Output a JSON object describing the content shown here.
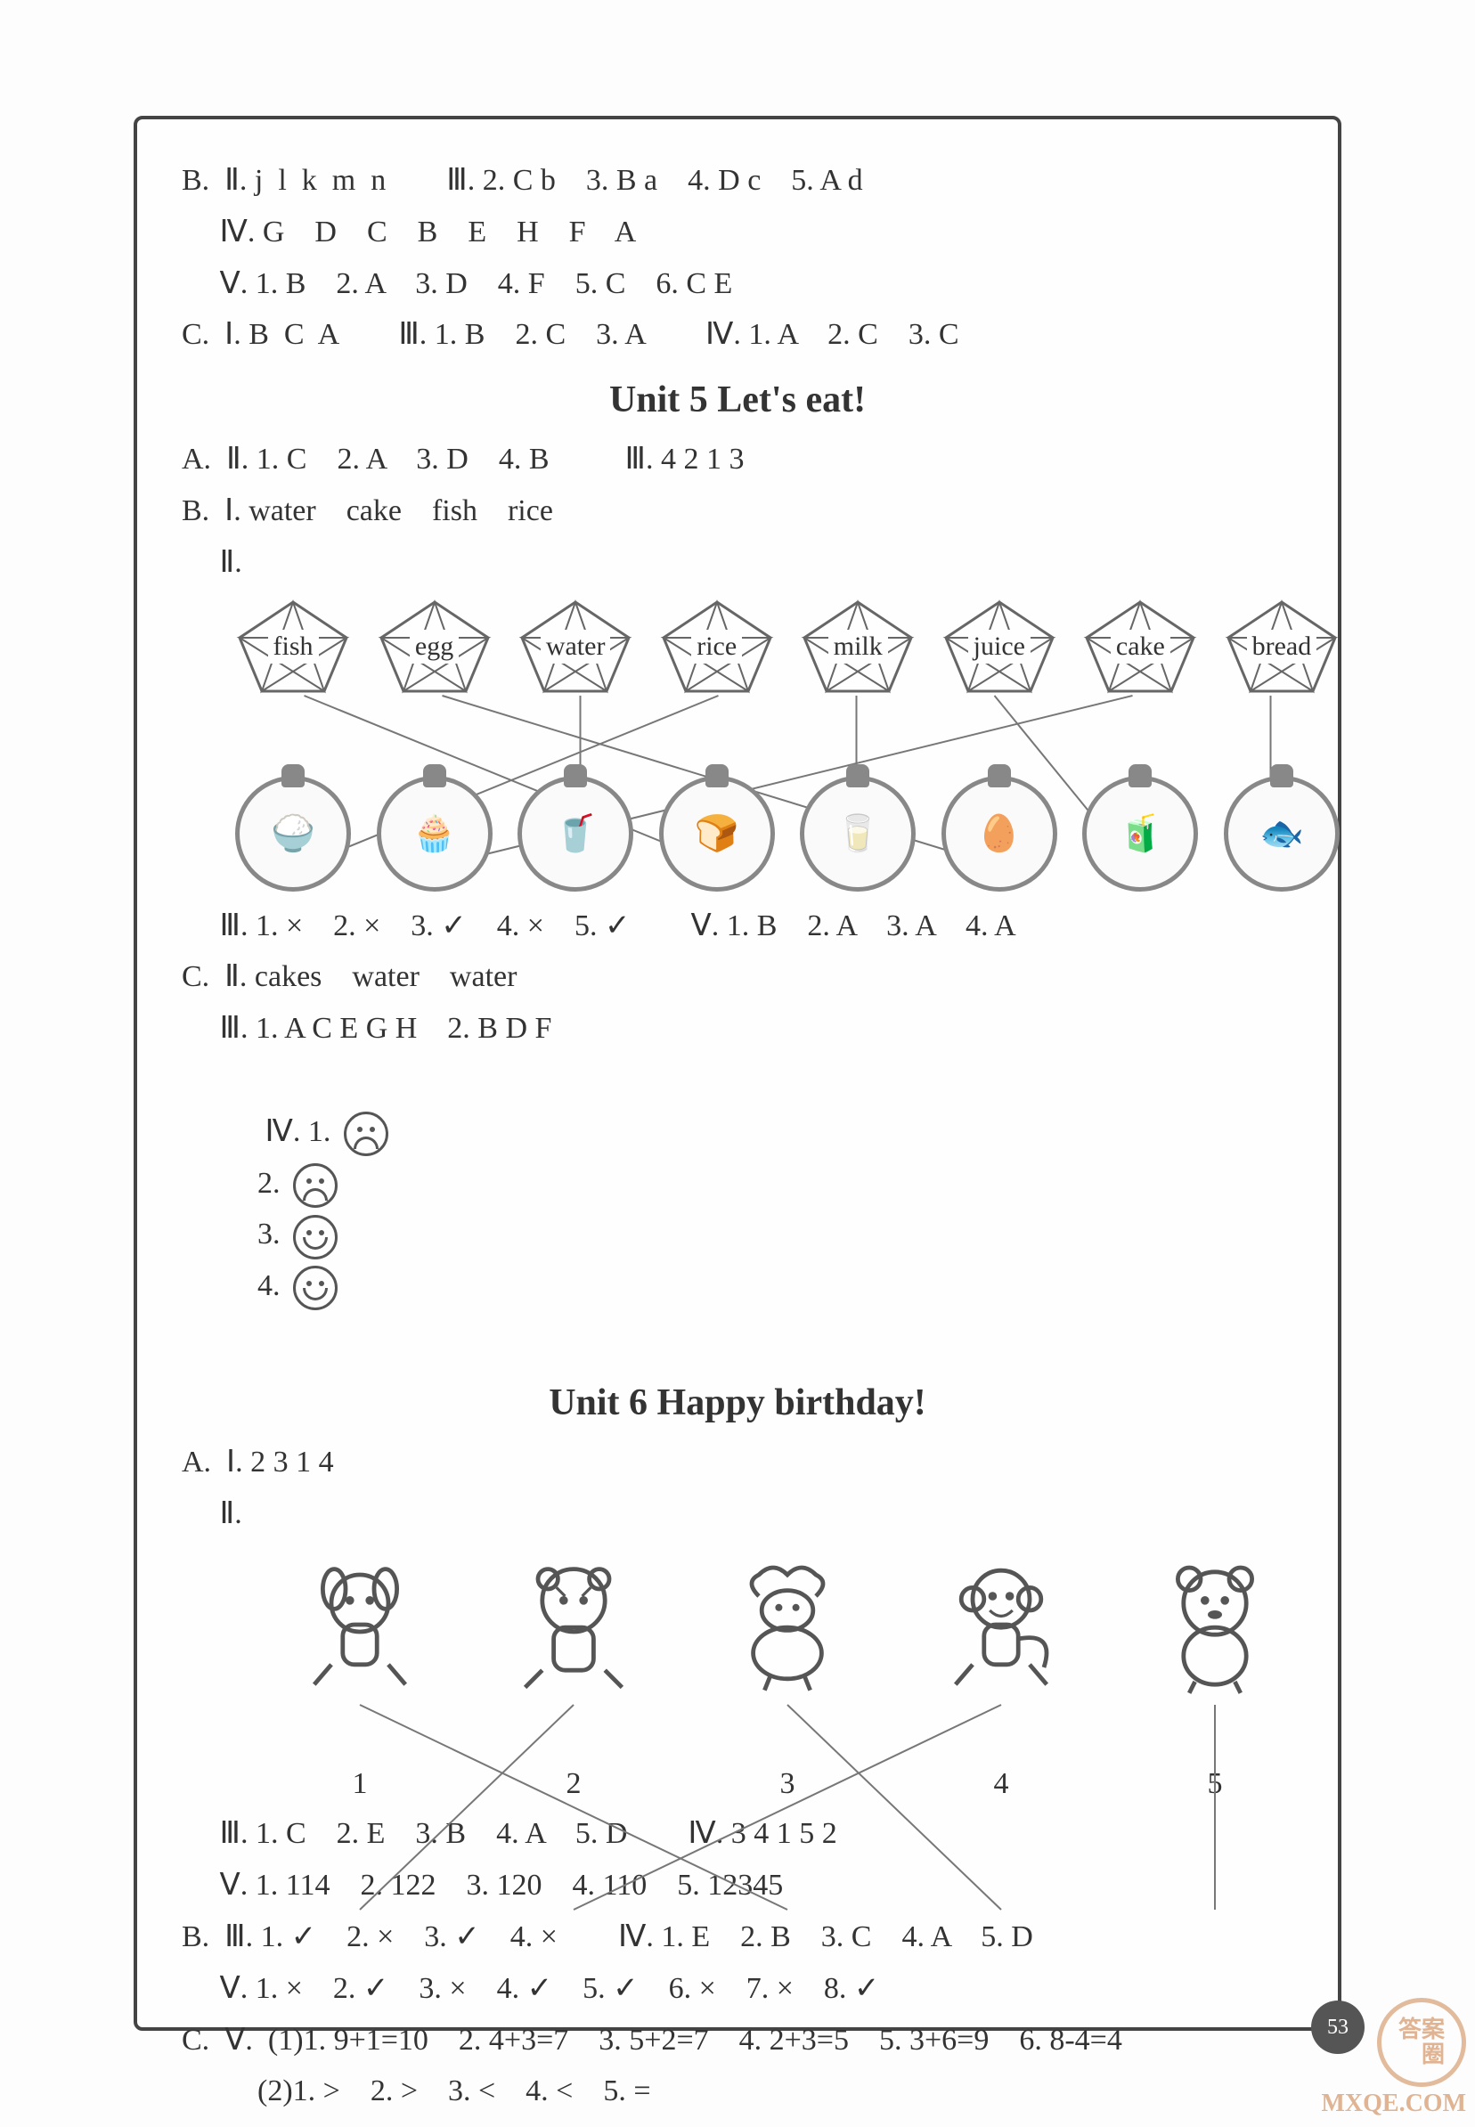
{
  "top": {
    "l1": "B.  Ⅱ. j  l  k  m  n        Ⅲ. 2. C b    3. B a    4. D c    5. A d",
    "l2": "     Ⅳ. G    D    C    B    E    H    F    A",
    "l3": "     Ⅴ. 1. B    2. A    3. D    4. F    5. C    6. C E",
    "l4": "C.  Ⅰ. B  C  A        Ⅲ. 1. B    2. C    3. A        Ⅳ. 1. A    2. C    3. C"
  },
  "unit5": {
    "title": "Unit 5    Let's eat!",
    "a": "A.  Ⅱ. 1. C    2. A    3. D    4. B          Ⅲ. 4 2 1 3",
    "b1": "B.  Ⅰ. water    cake    fish    rice",
    "b2": "     Ⅱ.",
    "pentagons": [
      "fish",
      "egg",
      "water",
      "rice",
      "milk",
      "juice",
      "cake",
      "bread"
    ],
    "circle_icons": [
      "🍚",
      "🧁",
      "🥤",
      "🍞",
      "🥛",
      "🥚",
      "🧃",
      "🐟"
    ],
    "match_pairs": [
      [
        0,
        3
      ],
      [
        1,
        5
      ],
      [
        2,
        2
      ],
      [
        3,
        0
      ],
      [
        4,
        4
      ],
      [
        5,
        6
      ],
      [
        6,
        1
      ],
      [
        7,
        7
      ]
    ],
    "line_color": "#777",
    "m3": "     Ⅲ. 1. ×    2. ×    3. ✓    4. ×    5. ✓        Ⅴ. 1. B    2. A    3. A    4. A",
    "c2": "C.  Ⅱ. cakes    water    water",
    "c3": "     Ⅲ. 1. A C E G H    2. B D F",
    "c4_prefix": "     Ⅳ. 1. ",
    "c4_mid2": "    2. ",
    "c4_mid3": "    3. ",
    "c4_mid4": "    4. ",
    "faces": [
      "sad",
      "sad",
      "happy",
      "happy"
    ]
  },
  "unit6": {
    "title": "Unit 6    Happy birthday!",
    "a1": "A.  Ⅰ. 2 3 1 4",
    "a2": "     Ⅱ.",
    "numbers": [
      "1",
      "2",
      "3",
      "4",
      "5"
    ],
    "match_pairs": [
      [
        0,
        2
      ],
      [
        1,
        0
      ],
      [
        2,
        3
      ],
      [
        3,
        1
      ],
      [
        4,
        4
      ]
    ],
    "m3": "     Ⅲ. 1. C    2. E    3. B    4. A    5. D        Ⅳ. 3 4 1 5 2",
    "m5": "     Ⅴ. 1. 114    2. 122    3. 120    4. 110    5. 12345",
    "b3": "B.  Ⅲ. 1. ✓    2. ×    3. ✓    4. ×        Ⅳ. 1. E    2. B    3. C    4. A    5. D",
    "b5": "     Ⅴ. 1. ×    2. ✓    3. ×    4. ✓    5. ✓    6. ×    7. ×    8. ✓",
    "cv1": "C.  Ⅴ.  (1)1. 9+1=10    2. 4+3=7    3. 5+2=7    4. 2+3=5    5. 3+6=9    6. 8-4=4",
    "cv2": "          (2)1. >    2. >    3. <    4. <    5. ="
  },
  "watermark": {
    "circ": "答案\\n圈",
    "url": "MXQE.COM"
  },
  "page_number": "53"
}
